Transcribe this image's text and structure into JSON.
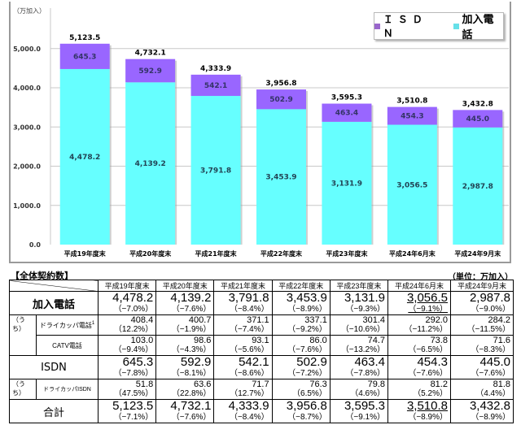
{
  "chart_data": {
    "type": "bar",
    "stacked": true,
    "title": "",
    "xlabel": "",
    "ylabel": "（万加入）",
    "ylim": [
      0,
      5500
    ],
    "yticks": [
      0,
      1000,
      2000,
      3000,
      4000,
      5000
    ],
    "ytick_labels": [
      "0.0",
      "1,000.0",
      "2,000.0",
      "3,000.0",
      "4,000.0",
      "5,000.0"
    ],
    "grid": true,
    "legend_position": "top-right",
    "categories": [
      "平成19年度末",
      "平成20年度末",
      "平成21年度末",
      "平成22年度末",
      "平成23年度末",
      "平成24年6月末",
      "平成24年9月末"
    ],
    "series": [
      {
        "name": "加入電話",
        "color": "#66ffff",
        "values": [
          4478.2,
          4139.2,
          3791.8,
          3453.9,
          3131.9,
          3056.5,
          2987.8
        ],
        "labels": [
          "4,478.2",
          "4,139.2",
          "3,791.8",
          "3,453.9",
          "3,131.9",
          "3,056.5",
          "2,987.8"
        ]
      },
      {
        "name": "ISDN",
        "color": "#9966ff",
        "values": [
          645.3,
          592.9,
          542.1,
          502.9,
          463.4,
          454.3,
          445.0
        ],
        "labels": [
          "645.3",
          "592.9",
          "542.1",
          "502.9",
          "463.4",
          "454.3",
          "445.0"
        ]
      }
    ],
    "totals": [
      5123.5,
      4732.1,
      4333.9,
      3956.8,
      3595.3,
      3510.8,
      3432.8
    ],
    "total_labels": [
      "5,123.5",
      "4,732.1",
      "4,333.9",
      "3,956.8",
      "3,595.3",
      "3,510.8",
      "3,432.8"
    ]
  },
  "legend": {
    "isdn_label": "ＩＳＤＮ",
    "phone_label": "加入電話",
    "isdn_color": "#9966cc",
    "phone_color": "#66e0e8"
  },
  "table": {
    "caption": "【全体契約数】",
    "unit": "（単位：万加入）",
    "headers": [
      "平成19年度末",
      "平成20年度末",
      "平成21年度末",
      "平成22年度末",
      "平成23年度末",
      "平成24年6月末",
      "平成24年9月末"
    ],
    "uchi_label": "（うち）",
    "footnote_mark": "1",
    "rows": [
      {
        "label": "加入電話",
        "values": [
          "4,478.2",
          "4,139.2",
          "3,791.8",
          "3,453.9",
          "3,131.9",
          "3,056.5",
          "2,987.8"
        ],
        "pcts": [
          "（−7.0%）",
          "（−7.6%）",
          "（−8.4%）",
          "（−8.9%）",
          "（−9.3%）",
          "（−9.1%）",
          "（−9.0%）"
        ]
      },
      {
        "label": "ドライカッパ電話",
        "values": [
          "408.4",
          "400.7",
          "371.1",
          "337.1",
          "301.4",
          "292.0",
          "284.2"
        ],
        "pcts": [
          "（12.2%）",
          "（−1.9%）",
          "（−7.4%）",
          "（−9.2%）",
          "（−10.6%）",
          "（−11.2%）",
          "（−11.5%）"
        ]
      },
      {
        "label": "CATV電話",
        "values": [
          "103.0",
          "98.6",
          "93.1",
          "86.0",
          "74.7",
          "73.8",
          "71.6"
        ],
        "pcts": [
          "（−9.4%）",
          "（−4.3%）",
          "（−5.6%）",
          "（−7.6%）",
          "（−13.2%）",
          "（−6.5%）",
          "（−8.3%）"
        ]
      },
      {
        "label": "ISDN",
        "values": [
          "645.3",
          "592.9",
          "542.1",
          "502.9",
          "463.4",
          "454.3",
          "445.0"
        ],
        "pcts": [
          "（−7.8%）",
          "（−8.1%）",
          "（−8.6%）",
          "（−7.2%）",
          "（−7.8%）",
          "（−7.6%）",
          "（−7.6%）"
        ]
      },
      {
        "label": "ドライカッパISDN",
        "values": [
          "51.8",
          "63.6",
          "71.7",
          "76.3",
          "79.8",
          "81.2",
          "81.8"
        ],
        "pcts": [
          "（47.5%）",
          "（22.8%）",
          "（12.7%）",
          "（6.5%）",
          "（4.6%）",
          "（5.2%）",
          "（4.4%）"
        ]
      },
      {
        "label": "合計",
        "values": [
          "5,123.5",
          "4,732.1",
          "4,333.9",
          "3,956.8",
          "3,595.3",
          "3,510.8",
          "3,432.8"
        ],
        "pcts": [
          "（−7.1%）",
          "（−7.6%）",
          "（−8.4%）",
          "（−8.7%）",
          "（−9.1%）",
          "（−8.9%）",
          "（−8.9%）"
        ]
      }
    ]
  }
}
